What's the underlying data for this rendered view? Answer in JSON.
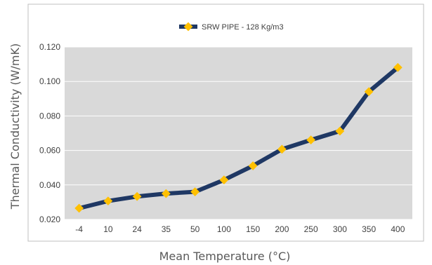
{
  "chart_data": {
    "type": "line",
    "title": "",
    "xlabel": "Mean Temperature (°C)",
    "ylabel": "Thermal Conductivity (W/mK)",
    "categories": [
      "-4",
      "10",
      "24",
      "35",
      "50",
      "100",
      "150",
      "200",
      "250",
      "300",
      "350",
      "400"
    ],
    "series": [
      {
        "name": "SRW PIPE - 128 Kg/m3",
        "values": [
          0.0265,
          0.0307,
          0.0333,
          0.035,
          0.036,
          0.0429,
          0.0511,
          0.0607,
          0.0661,
          0.0712,
          0.0941,
          0.1081
        ]
      }
    ],
    "ylim": [
      0.02,
      0.12
    ],
    "yticks": [
      "0.020",
      "0.040",
      "0.060",
      "0.080",
      "0.100",
      "0.120"
    ],
    "grid": true,
    "legend_position": "top-center",
    "colors": {
      "line": "#1f3864",
      "marker": "#ffc000",
      "plot_background": "#d9d9d9",
      "gridline": "#ffffff",
      "frame": "#bfbfbf"
    }
  }
}
